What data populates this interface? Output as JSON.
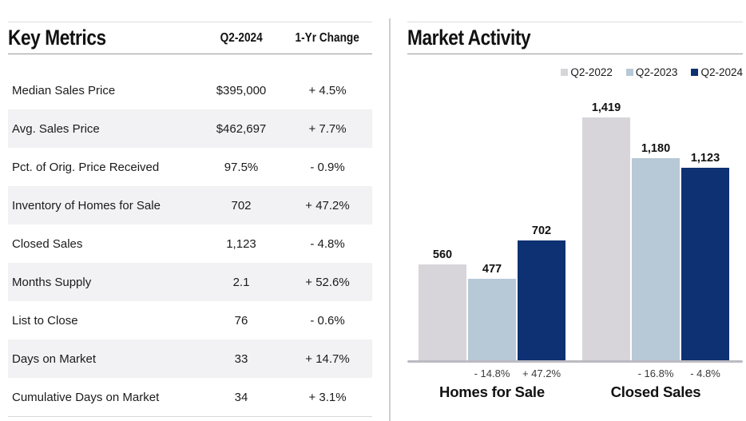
{
  "key_metrics": {
    "title": "Key Metrics",
    "columns": {
      "period": "Q2-2024",
      "change": "1-Yr Change"
    },
    "rows": [
      {
        "label": "Median Sales Price",
        "value": "$395,000",
        "change": "+ 4.5%"
      },
      {
        "label": "Avg. Sales Price",
        "value": "$462,697",
        "change": "+ 7.7%"
      },
      {
        "label": "Pct. of Orig. Price Received",
        "value": "97.5%",
        "change": "- 0.9%"
      },
      {
        "label": "Inventory of Homes for Sale",
        "value": "702",
        "change": "+ 47.2%"
      },
      {
        "label": "Closed Sales",
        "value": "1,123",
        "change": "- 4.8%"
      },
      {
        "label": "Months Supply",
        "value": "2.1",
        "change": "+ 52.6%"
      },
      {
        "label": "List to Close",
        "value": "76",
        "change": "- 0.6%"
      },
      {
        "label": "Days on Market",
        "value": "33",
        "change": "+ 14.7%"
      },
      {
        "label": "Cumulative Days on Market",
        "value": "34",
        "change": "+ 3.1%"
      }
    ]
  },
  "chart_data": {
    "type": "bar",
    "title": "Market Activity",
    "categories": [
      "Homes for Sale",
      "Closed Sales"
    ],
    "series": [
      {
        "name": "Q2-2022",
        "color": "#D7D5DA",
        "values": [
          560,
          1419
        ],
        "labels": [
          "560",
          "1,419"
        ],
        "pct_change": [
          null,
          null
        ]
      },
      {
        "name": "Q2-2023",
        "color": "#B7C8D6",
        "values": [
          477,
          1180
        ],
        "labels": [
          "477",
          "1,180"
        ],
        "pct_change": [
          "- 14.8%",
          "- 16.8%"
        ]
      },
      {
        "name": "Q2-2024",
        "color": "#0E3173",
        "values": [
          702,
          1123
        ],
        "labels": [
          "702",
          "1,123"
        ],
        "pct_change": [
          "+ 47.2%",
          "- 4.8%"
        ]
      }
    ],
    "legend_position": "top-right",
    "ylim": [
      0,
      1500
    ],
    "grid": false
  }
}
